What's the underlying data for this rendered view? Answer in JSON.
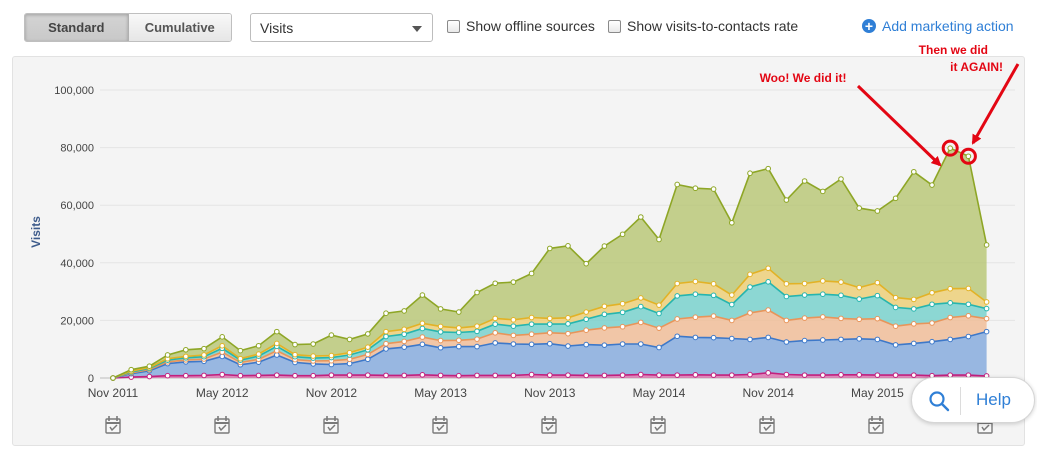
{
  "toolbar": {
    "view_modes": [
      "Standard",
      "Cumulative"
    ],
    "active_mode": "Standard",
    "metric_select": {
      "value": "Visits"
    },
    "checkboxes": [
      {
        "label": "Show offline sources",
        "checked": false
      },
      {
        "label": "Show visits-to-contacts rate",
        "checked": false
      }
    ],
    "add_action_label": "Add marketing action"
  },
  "help": {
    "label": "Help"
  },
  "annotations": {
    "first": "Woo! We did it!",
    "second_line1": "Then we did",
    "second_line2": "it AGAIN!",
    "color": "#e30613"
  },
  "chart_data": {
    "type": "area",
    "stacked": true,
    "ylabel": "Visits",
    "ylim": [
      0,
      100000
    ],
    "yticks": [
      "0",
      "20,000",
      "40,000",
      "60,000",
      "80,000",
      "100,000"
    ],
    "xtick_labels": [
      "Nov 2011",
      "May 2012",
      "Nov 2012",
      "May 2013",
      "Nov 2013",
      "May 2014",
      "Nov 2014",
      "May 2015"
    ],
    "x": [
      "Nov 2011",
      "Dec 2011",
      "Jan 2012",
      "Feb 2012",
      "Mar 2012",
      "Apr 2012",
      "May 2012",
      "Jun 2012",
      "Jul 2012",
      "Aug 2012",
      "Sep 2012",
      "Oct 2012",
      "Nov 2012",
      "Dec 2012",
      "Jan 2013",
      "Feb 2013",
      "Mar 2013",
      "Apr 2013",
      "May 2013",
      "Jun 2013",
      "Jul 2013",
      "Aug 2013",
      "Sep 2013",
      "Oct 2013",
      "Nov 2013",
      "Dec 2013",
      "Jan 2014",
      "Feb 2014",
      "Mar 2014",
      "Apr 2014",
      "May 2014",
      "Jun 2014",
      "Jul 2014",
      "Aug 2014",
      "Sep 2014",
      "Oct 2014",
      "Nov 2014",
      "Dec 2014",
      "Jan 2015",
      "Feb 2015",
      "Mar 2015",
      "Apr 2015",
      "May 2015",
      "Jun 2015",
      "Jul 2015",
      "Aug 2015",
      "Sep 2015",
      "Oct 2015",
      "Nov 2015"
    ],
    "series": [
      {
        "color": "#c2207e",
        "values": [
          0,
          300,
          500,
          800,
          800,
          900,
          1200,
          800,
          900,
          1000,
          800,
          800,
          1000,
          1000,
          1000,
          900,
          900,
          1100,
          900,
          800,
          900,
          900,
          900,
          1200,
          1000,
          1000,
          900,
          900,
          1000,
          1200,
          1000,
          1000,
          1100,
          1000,
          1000,
          1200,
          1800,
          1200,
          1000,
          1000,
          1100,
          1100,
          1000,
          1000,
          1000,
          800,
          1000,
          1000,
          700
        ]
      },
      {
        "color": "#3d78c9",
        "values": [
          0,
          1200,
          2000,
          4200,
          4800,
          4900,
          6300,
          3800,
          4600,
          7000,
          4600,
          4100,
          3700,
          4000,
          5500,
          9200,
          9800,
          10600,
          9600,
          10100,
          10000,
          11300,
          10900,
          10500,
          10900,
          10100,
          10700,
          10500,
          10800,
          10600,
          9600,
          13500,
          13000,
          13000,
          12700,
          12200,
          12300,
          11300,
          12000,
          12200,
          12300,
          12500,
          12400,
          10500,
          11000,
          11800,
          12400,
          13400,
          15400
        ]
      },
      {
        "color": "#e8955a",
        "values": [
          0,
          300,
          400,
          600,
          700,
          800,
          1500,
          800,
          1000,
          1500,
          1000,
          1000,
          1300,
          1500,
          1700,
          1800,
          2000,
          2500,
          2500,
          2200,
          2600,
          3500,
          3000,
          3500,
          3800,
          4300,
          5000,
          6000,
          6000,
          7500,
          6700,
          6000,
          7000,
          7500,
          6300,
          9200,
          9500,
          7500,
          7800,
          8000,
          7300,
          6800,
          7200,
          6500,
          6800,
          6500,
          7600,
          7200,
          4500
        ]
      },
      {
        "color": "#26b5ae",
        "values": [
          0,
          300,
          400,
          600,
          700,
          800,
          1300,
          800,
          1100,
          1500,
          1000,
          1000,
          1100,
          1500,
          1600,
          2500,
          2500,
          3000,
          3000,
          2700,
          2700,
          3000,
          3200,
          3500,
          3000,
          3400,
          3800,
          4700,
          5000,
          5500,
          5100,
          8000,
          8000,
          7200,
          5500,
          9000,
          9800,
          8300,
          8000,
          7900,
          8000,
          7000,
          8000,
          6500,
          5200,
          6500,
          5100,
          4000,
          3500
        ]
      },
      {
        "color": "#e2b226",
        "values": [
          0,
          300,
          300,
          500,
          500,
          600,
          900,
          500,
          700,
          1000,
          700,
          700,
          700,
          800,
          900,
          1700,
          1700,
          1800,
          1900,
          1600,
          1800,
          2000,
          2200,
          2300,
          2000,
          2100,
          2500,
          2800,
          3000,
          3000,
          2900,
          4300,
          4400,
          4000,
          3300,
          4400,
          4700,
          4400,
          4000,
          4600,
          4600,
          4000,
          4500,
          3400,
          3300,
          4000,
          4900,
          5500,
          2300
        ]
      },
      {
        "color": "#8ea626",
        "values": [
          0,
          500,
          500,
          1300,
          2300,
          2200,
          3100,
          2800,
          2900,
          4100,
          3500,
          4200,
          7100,
          4600,
          4600,
          6400,
          6400,
          9800,
          6100,
          5500,
          11700,
          12200,
          13100,
          15300,
          24300,
          25000,
          16800,
          20900,
          24100,
          28100,
          22800,
          34400,
          32400,
          32900,
          25100,
          35100,
          34600,
          29100,
          35600,
          31100,
          35800,
          27600,
          24900,
          34500,
          44300,
          37400,
          48800,
          45900,
          19800
        ]
      }
    ]
  }
}
